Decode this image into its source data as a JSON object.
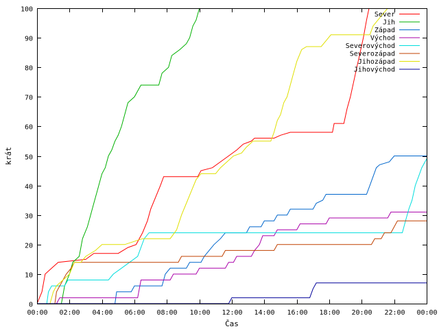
{
  "chart_data": {
    "type": "line",
    "step": true,
    "title": "",
    "xlabel": "Čas",
    "ylabel": "krát",
    "xlim": [
      0,
      24
    ],
    "ylim": [
      0,
      100
    ],
    "x_ticks": [
      {
        "value": 0,
        "label": "00:00"
      },
      {
        "value": 2,
        "label": "02:00"
      },
      {
        "value": 4,
        "label": "04:00"
      },
      {
        "value": 6,
        "label": "06:00"
      },
      {
        "value": 8,
        "label": "08:00"
      },
      {
        "value": 10,
        "label": "10:00"
      },
      {
        "value": 12,
        "label": "12:00"
      },
      {
        "value": 14,
        "label": "14:00"
      },
      {
        "value": 16,
        "label": "16:00"
      },
      {
        "value": 18,
        "label": "18:00"
      },
      {
        "value": 20,
        "label": "20:00"
      },
      {
        "value": 22,
        "label": "22:00"
      },
      {
        "value": 24,
        "label": "00:00"
      }
    ],
    "y_ticks": [
      0,
      10,
      20,
      30,
      40,
      50,
      60,
      70,
      80,
      90,
      100
    ],
    "grid": false,
    "legend_position": "top-right",
    "series": [
      {
        "name": "Sever",
        "color": "#ff0000",
        "points": [
          [
            0,
            0
          ],
          [
            0.3,
            4
          ],
          [
            0.5,
            10
          ],
          [
            0.9,
            12
          ],
          [
            1.3,
            14
          ],
          [
            3,
            15
          ],
          [
            3.5,
            17
          ],
          [
            5,
            17
          ],
          [
            5.6,
            19
          ],
          [
            6.1,
            20
          ],
          [
            6.5,
            24
          ],
          [
            6.8,
            28
          ],
          [
            7.0,
            32
          ],
          [
            7.3,
            36
          ],
          [
            7.6,
            40
          ],
          [
            7.8,
            43
          ],
          [
            9.9,
            43
          ],
          [
            10.1,
            45
          ],
          [
            10.8,
            46
          ],
          [
            11.3,
            48
          ],
          [
            11.8,
            50
          ],
          [
            12.3,
            52
          ],
          [
            12.7,
            54
          ],
          [
            13.2,
            55
          ],
          [
            13.4,
            56
          ],
          [
            14.6,
            56
          ],
          [
            15,
            57
          ],
          [
            15.6,
            58
          ],
          [
            18.2,
            58
          ],
          [
            18.3,
            61
          ],
          [
            18.9,
            61
          ],
          [
            19.1,
            66
          ],
          [
            19.3,
            70
          ],
          [
            19.5,
            75
          ],
          [
            19.7,
            80
          ],
          [
            19.9,
            85
          ],
          [
            20.1,
            90
          ],
          [
            20.3,
            96
          ],
          [
            20.45,
            100
          ],
          [
            24,
            100
          ]
        ]
      },
      {
        "name": "Jih",
        "color": "#00b000",
        "points": [
          [
            0,
            0
          ],
          [
            1.5,
            0
          ],
          [
            1.7,
            6
          ],
          [
            2.0,
            10
          ],
          [
            2.2,
            14
          ],
          [
            2.6,
            16
          ],
          [
            2.8,
            22
          ],
          [
            3.1,
            26
          ],
          [
            3.3,
            30
          ],
          [
            3.5,
            34
          ],
          [
            3.7,
            38
          ],
          [
            3.9,
            42
          ],
          [
            4.0,
            44
          ],
          [
            4.2,
            46
          ],
          [
            4.4,
            50
          ],
          [
            4.6,
            52
          ],
          [
            4.8,
            55
          ],
          [
            5.0,
            57
          ],
          [
            5.2,
            60
          ],
          [
            5.4,
            64
          ],
          [
            5.6,
            68
          ],
          [
            6.0,
            70
          ],
          [
            6.2,
            72
          ],
          [
            6.4,
            74
          ],
          [
            7.5,
            74
          ],
          [
            7.7,
            78
          ],
          [
            8.1,
            80
          ],
          [
            8.3,
            84
          ],
          [
            8.8,
            86
          ],
          [
            9.2,
            88
          ],
          [
            9.4,
            90
          ],
          [
            9.6,
            94
          ],
          [
            9.8,
            96
          ],
          [
            10,
            100
          ],
          [
            24,
            100
          ]
        ]
      },
      {
        "name": "Západ",
        "color": "#0066cc",
        "points": [
          [
            0,
            0
          ],
          [
            4.8,
            0
          ],
          [
            4.9,
            4
          ],
          [
            5.8,
            4
          ],
          [
            6.0,
            6
          ],
          [
            7.7,
            6
          ],
          [
            7.9,
            10
          ],
          [
            8.2,
            12
          ],
          [
            9.2,
            12
          ],
          [
            9.4,
            14
          ],
          [
            10.1,
            14
          ],
          [
            10.3,
            16
          ],
          [
            10.6,
            18
          ],
          [
            10.9,
            20
          ],
          [
            11.3,
            22
          ],
          [
            11.6,
            24
          ],
          [
            12.9,
            24
          ],
          [
            13.1,
            26
          ],
          [
            13.8,
            26
          ],
          [
            14,
            28
          ],
          [
            14.6,
            28
          ],
          [
            14.8,
            30
          ],
          [
            15.4,
            30
          ],
          [
            15.6,
            32
          ],
          [
            17.0,
            32
          ],
          [
            17.2,
            34
          ],
          [
            17.6,
            35
          ],
          [
            17.8,
            37
          ],
          [
            20.3,
            37
          ],
          [
            20.5,
            40
          ],
          [
            20.7,
            43
          ],
          [
            20.9,
            46
          ],
          [
            21.1,
            47
          ],
          [
            21.7,
            48
          ],
          [
            22,
            50
          ],
          [
            24,
            50
          ]
        ]
      },
      {
        "name": "Východ",
        "color": "#aa00aa",
        "points": [
          [
            0,
            0
          ],
          [
            1.2,
            0
          ],
          [
            1.4,
            2
          ],
          [
            4.5,
            2
          ],
          [
            6.2,
            2
          ],
          [
            6.4,
            8
          ],
          [
            8.2,
            8
          ],
          [
            8.4,
            10
          ],
          [
            9.8,
            10
          ],
          [
            10.0,
            12
          ],
          [
            11.6,
            12
          ],
          [
            11.8,
            14
          ],
          [
            12.1,
            14
          ],
          [
            12.3,
            16
          ],
          [
            13.2,
            16
          ],
          [
            13.4,
            18
          ],
          [
            13.7,
            20
          ],
          [
            13.9,
            23
          ],
          [
            14.6,
            23
          ],
          [
            14.8,
            25
          ],
          [
            16.0,
            25
          ],
          [
            16.2,
            27
          ],
          [
            17.8,
            27
          ],
          [
            18.0,
            29
          ],
          [
            21.6,
            29
          ],
          [
            21.8,
            31
          ],
          [
            24,
            31
          ]
        ]
      },
      {
        "name": "Severovýchod",
        "color": "#00dddd",
        "points": [
          [
            0,
            0
          ],
          [
            0.6,
            0
          ],
          [
            0.7,
            4
          ],
          [
            0.9,
            6
          ],
          [
            1.7,
            6
          ],
          [
            1.9,
            8
          ],
          [
            4.4,
            8
          ],
          [
            4.7,
            10
          ],
          [
            5.2,
            12
          ],
          [
            5.7,
            14
          ],
          [
            6.2,
            16
          ],
          [
            6.6,
            22
          ],
          [
            6.9,
            24
          ],
          [
            22.5,
            24
          ],
          [
            22.7,
            28
          ],
          [
            22.9,
            32
          ],
          [
            23.1,
            35
          ],
          [
            23.3,
            40
          ],
          [
            23.5,
            43
          ],
          [
            23.7,
            46
          ],
          [
            24,
            49
          ]
        ]
      },
      {
        "name": "Severozápad",
        "color": "#c04000",
        "points": [
          [
            0,
            0
          ],
          [
            1.1,
            0
          ],
          [
            1.2,
            4
          ],
          [
            1.4,
            6
          ],
          [
            1.8,
            10
          ],
          [
            2.1,
            12
          ],
          [
            2.3,
            14
          ],
          [
            8.7,
            14
          ],
          [
            8.9,
            16
          ],
          [
            11.4,
            16
          ],
          [
            11.6,
            18
          ],
          [
            14.6,
            18
          ],
          [
            14.8,
            20
          ],
          [
            20.6,
            20
          ],
          [
            20.8,
            22
          ],
          [
            21.2,
            22
          ],
          [
            21.4,
            24
          ],
          [
            21.8,
            24
          ],
          [
            22.0,
            26
          ],
          [
            22.2,
            28
          ],
          [
            24,
            28
          ]
        ]
      },
      {
        "name": "Jihozápad",
        "color": "#e0e000",
        "points": [
          [
            0,
            0
          ],
          [
            0.8,
            0
          ],
          [
            1.0,
            4
          ],
          [
            1.2,
            6
          ],
          [
            2.0,
            10
          ],
          [
            2.3,
            14
          ],
          [
            2.7,
            14
          ],
          [
            3,
            16
          ],
          [
            3.6,
            18
          ],
          [
            4,
            20
          ],
          [
            5.4,
            20
          ],
          [
            6.5,
            22
          ],
          [
            8.2,
            22
          ],
          [
            8.6,
            25
          ],
          [
            8.9,
            30
          ],
          [
            9.2,
            34
          ],
          [
            9.5,
            38
          ],
          [
            9.8,
            42
          ],
          [
            10.1,
            44
          ],
          [
            11.0,
            44
          ],
          [
            11.3,
            46
          ],
          [
            11.7,
            48
          ],
          [
            12.1,
            50
          ],
          [
            12.6,
            51
          ],
          [
            12.9,
            53
          ],
          [
            13.3,
            55
          ],
          [
            14.4,
            55
          ],
          [
            14.6,
            58
          ],
          [
            14.8,
            62
          ],
          [
            15,
            64
          ],
          [
            15.2,
            68
          ],
          [
            15.4,
            70
          ],
          [
            15.6,
            74
          ],
          [
            15.8,
            78
          ],
          [
            16,
            82
          ],
          [
            16.3,
            86
          ],
          [
            16.6,
            87
          ],
          [
            17.5,
            87
          ],
          [
            17.8,
            89
          ],
          [
            18.1,
            91
          ],
          [
            20.5,
            91
          ],
          [
            20.7,
            94
          ],
          [
            21,
            96
          ],
          [
            21.3,
            98
          ],
          [
            21.6,
            100
          ],
          [
            24,
            100
          ]
        ]
      },
      {
        "name": "Jihovýchod",
        "color": "#000099",
        "points": [
          [
            0,
            0
          ],
          [
            11.8,
            0
          ],
          [
            12,
            2
          ],
          [
            16.8,
            2
          ],
          [
            17.0,
            5
          ],
          [
            17.2,
            7
          ],
          [
            24,
            7
          ]
        ]
      }
    ]
  }
}
